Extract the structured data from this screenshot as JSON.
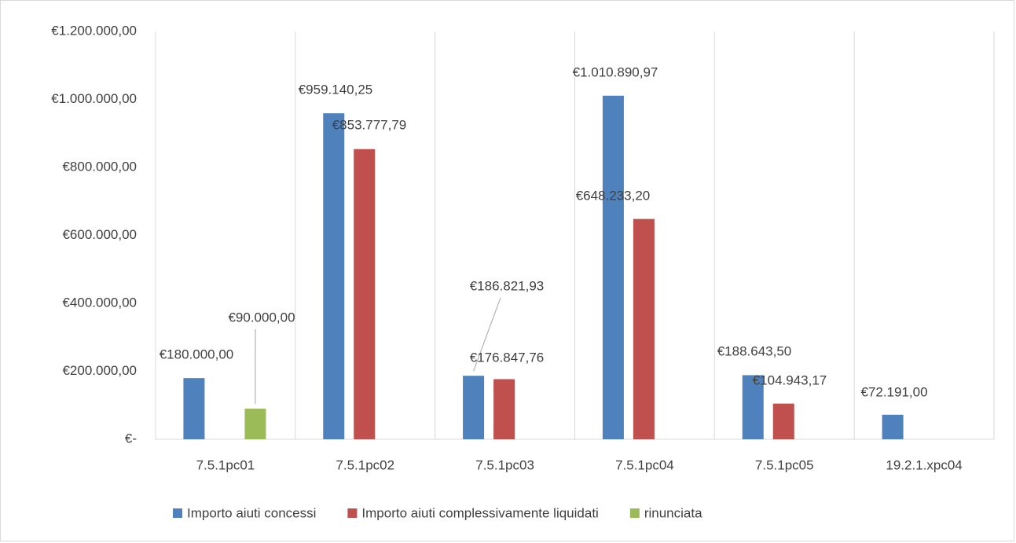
{
  "chart_data": {
    "type": "bar",
    "categories": [
      "7.5.1pc01",
      "7.5.1pc02",
      "7.5.1pc03",
      "7.5.1pc04",
      "7.5.1pc05",
      "19.2.1.xpc04"
    ],
    "series": [
      {
        "name": "Importo aiuti concessi",
        "color": "#4f81bd",
        "values": [
          180000,
          959140.25,
          186821.93,
          1010890.97,
          188643.5,
          72191
        ],
        "value_labels": [
          "€180.000,00",
          "€959.140,25",
          "€186.821,93",
          "€1.010.890,97",
          "€188.643,50",
          "€72.191,00"
        ]
      },
      {
        "name": "Importo aiuti complessivamente liquidati",
        "color": "#c0504d",
        "values": [
          null,
          853777.79,
          176847.76,
          648233.2,
          104943.17,
          null
        ],
        "value_labels": [
          null,
          "€853.777,79",
          "€176.847,76",
          "€648.233,20",
          "€104.943,17",
          null
        ]
      },
      {
        "name": "rinunciata",
        "color": "#9bbb59",
        "values": [
          90000,
          null,
          null,
          null,
          null,
          null
        ],
        "value_labels": [
          "€90.000,00",
          null,
          null,
          null,
          null,
          null
        ]
      }
    ],
    "ylim": [
      0,
      1200000
    ],
    "yticks": [
      {
        "value": 0,
        "label": "€-"
      },
      {
        "value": 200000,
        "label": "€200.000,00"
      },
      {
        "value": 400000,
        "label": "€400.000,00"
      },
      {
        "value": 600000,
        "label": "€600.000,00"
      },
      {
        "value": 800000,
        "label": "€800.000,00"
      },
      {
        "value": 1000000,
        "label": "€1.000.000,00"
      },
      {
        "value": 1200000,
        "label": "€1.200.000,00"
      }
    ],
    "legend": "bottom"
  }
}
